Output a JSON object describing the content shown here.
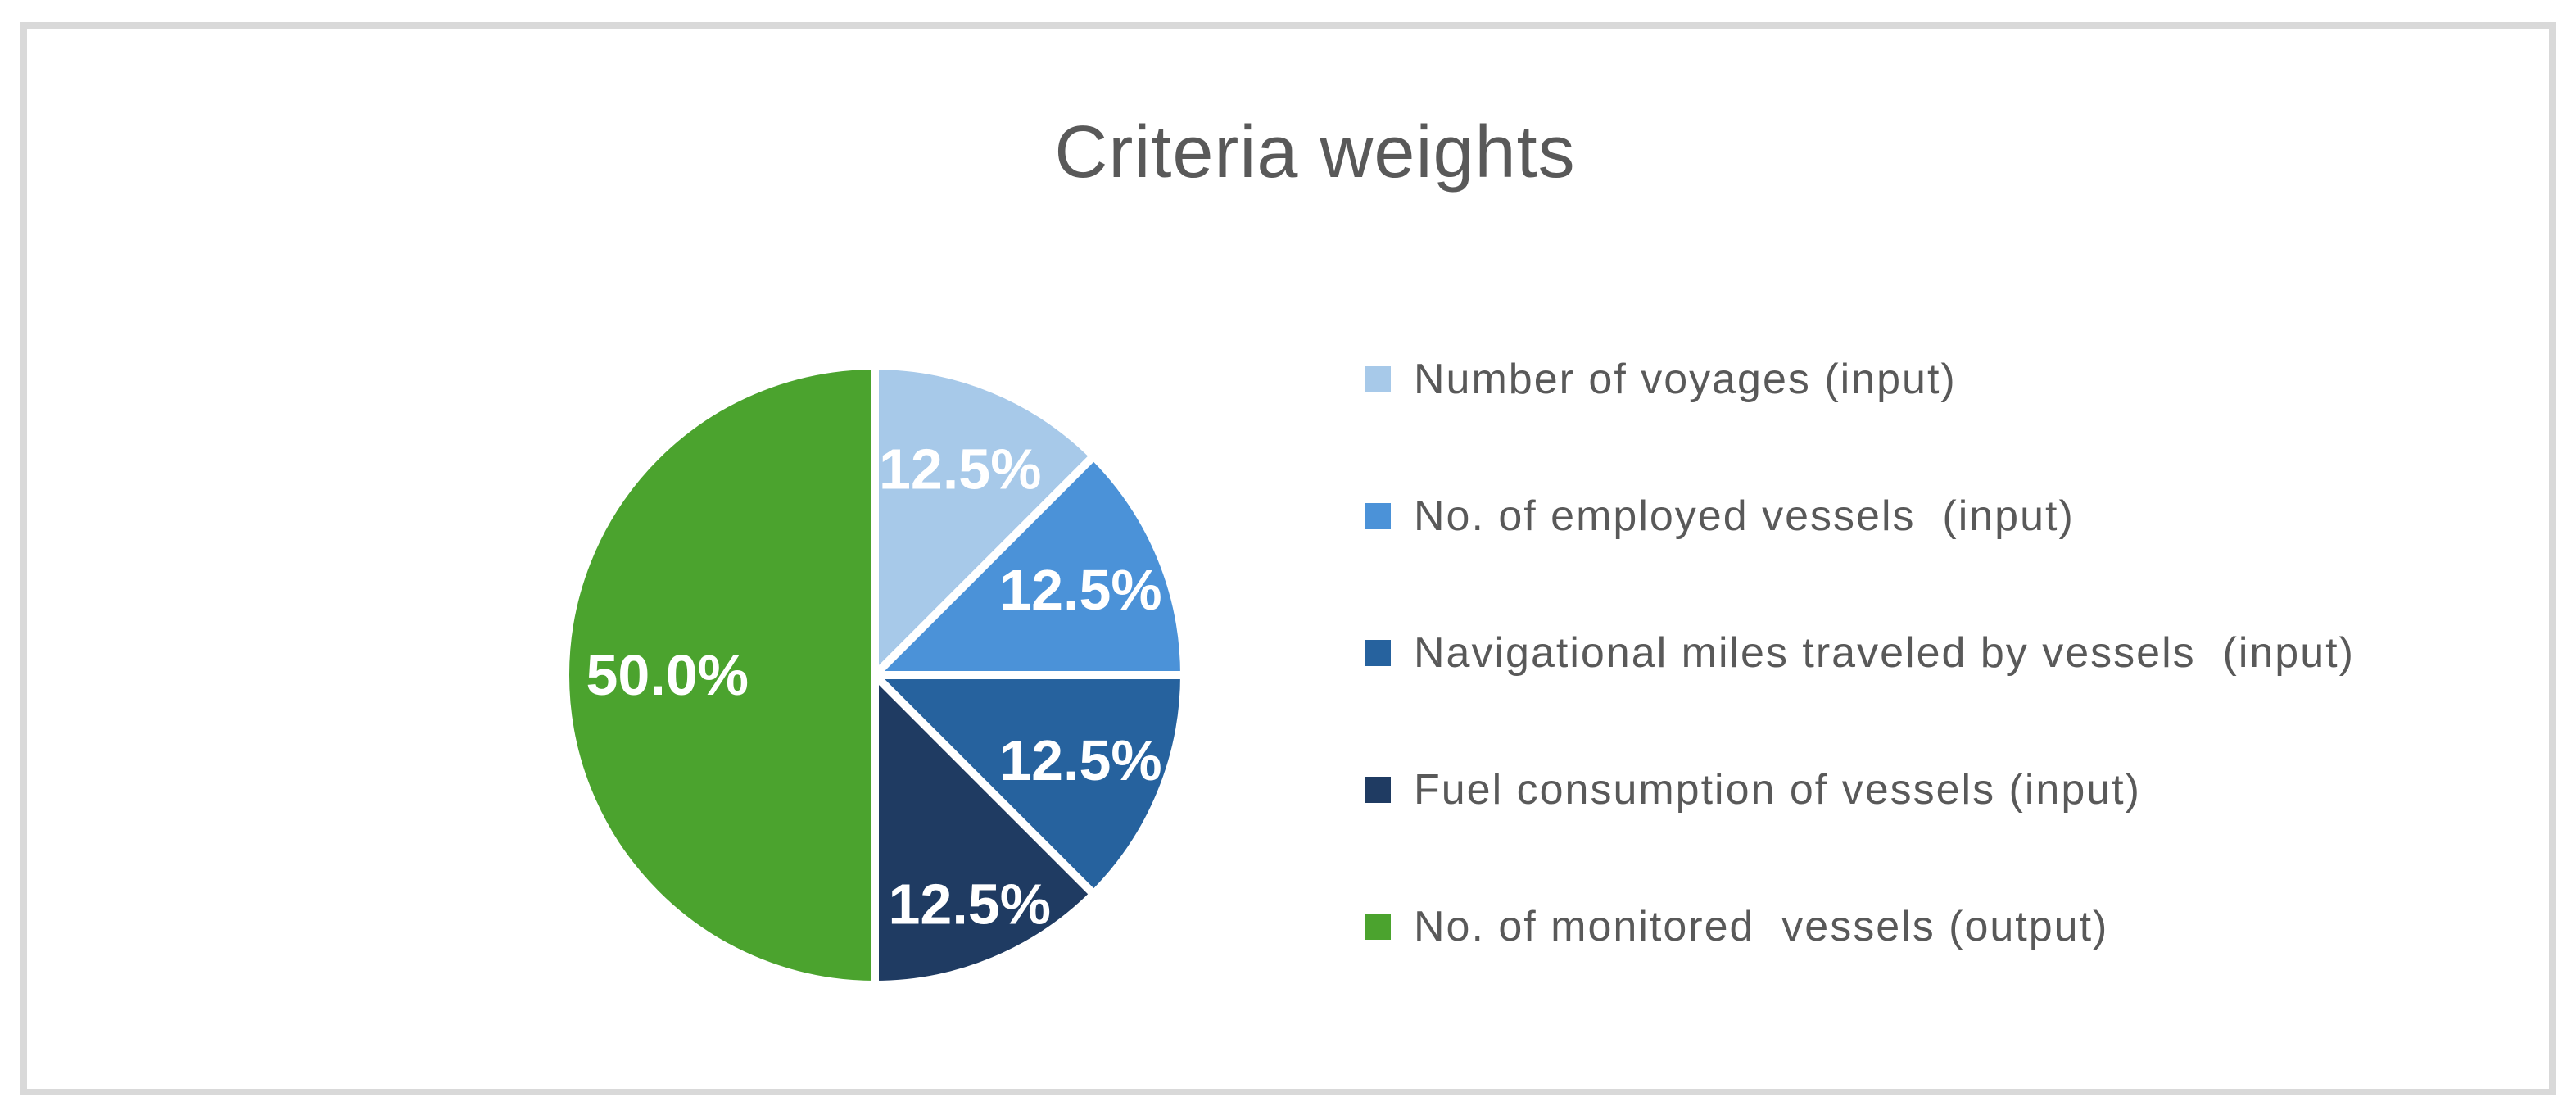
{
  "frame": {
    "border_color": "#D9D9D9",
    "background_color": "#FFFFFF"
  },
  "chart_data": {
    "type": "pie",
    "title": "Criteria weights",
    "title_color": "#595959",
    "labels": [
      "Number of voyages (input)",
      "No. of employed vessels  (input)",
      "Navigational miles traveled by vessels  (input)",
      "Fuel consumption of vessels (input)",
      "No. of monitored  vessels (output)"
    ],
    "values": [
      12.5,
      12.5,
      12.5,
      12.5,
      50.0
    ],
    "data_labels": [
      "12.5%",
      "12.5%",
      "12.5%",
      "12.5%",
      "50.0%"
    ],
    "data_label_color": "#FFFFFF",
    "colors": [
      "#A7C9E9",
      "#4B92D8",
      "#26629E",
      "#1F3B62",
      "#4BA32E"
    ],
    "start_angle_deg": 0,
    "direction": "clockwise",
    "slice_separator_color": "#FFFFFF",
    "legend_position": "right",
    "legend_text_color": "#595959",
    "grid": false
  }
}
